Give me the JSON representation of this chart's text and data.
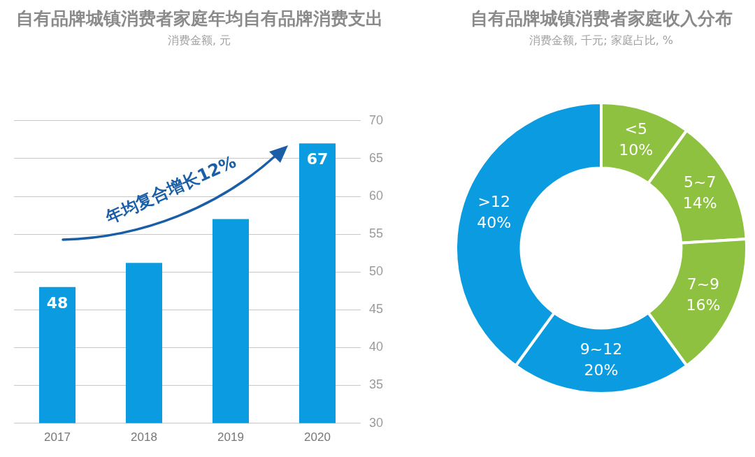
{
  "chart_data": [
    {
      "type": "bar",
      "title": "自有品牌城镇消费者家庭年均自有品牌消费支出",
      "subtitle": "消费金额, 元",
      "categories": [
        "2017",
        "2018",
        "2019",
        "2020"
      ],
      "values": [
        48,
        51.2,
        57.0,
        67
      ],
      "color": "#0a9be0",
      "value_labels": [
        "48",
        null,
        null,
        "67"
      ],
      "ylim": [
        30,
        70
      ],
      "yticks": [
        30,
        35,
        40,
        45,
        50,
        55,
        60,
        65,
        70
      ],
      "grid": "y",
      "annotations": [
        "年均复合增长12%"
      ]
    },
    {
      "type": "donut",
      "title": "自有品牌城镇消费者家庭收入分布",
      "subtitle": "消费金额, 千元; 家庭占比, %",
      "categories": [
        "<5",
        "5~7",
        "7~9",
        "9~12",
        ">12"
      ],
      "values": [
        10,
        14,
        16,
        20,
        40
      ],
      "colors": [
        "#8dc13f",
        "#8dc13f",
        "#8dc13f",
        "#0a9be0",
        "#0a9be0"
      ],
      "value_labels": [
        "10%",
        "14%",
        "16%",
        "20%",
        "40%"
      ]
    }
  ]
}
